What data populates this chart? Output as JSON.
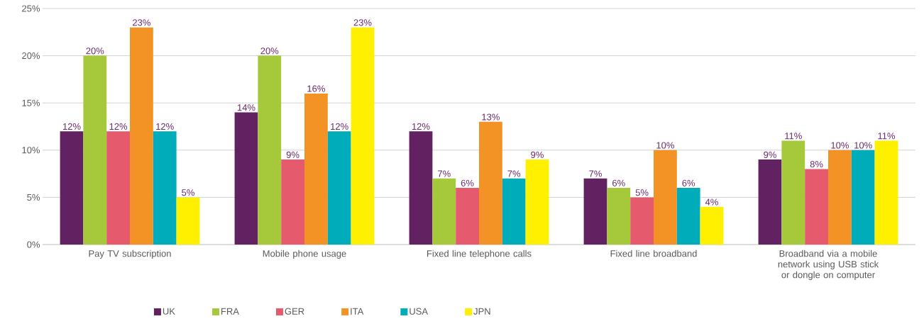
{
  "chart_data": {
    "type": "bar",
    "categories": [
      "Pay TV subscription",
      "Mobile phone usage",
      "Fixed line telephone calls",
      "Fixed line broadband",
      "Broadband via a mobile network using USB stick or dongle on computer"
    ],
    "series": [
      {
        "name": "UK",
        "color": "#622160",
        "values": [
          12,
          14,
          12,
          7,
          9
        ],
        "value_labels": [
          "12%",
          "14%",
          "12%",
          "7%",
          "9%"
        ]
      },
      {
        "name": "FRA",
        "color": "#a6c93b",
        "values": [
          20,
          20,
          7,
          6,
          11
        ],
        "value_labels": [
          "20%",
          "20%",
          "7%",
          "6%",
          "11%"
        ]
      },
      {
        "name": "GER",
        "color": "#e55a6c",
        "values": [
          12,
          9,
          6,
          5,
          8
        ],
        "value_labels": [
          "12%",
          "9%",
          "6%",
          "5%",
          "8%"
        ]
      },
      {
        "name": "ITA",
        "color": "#f39325",
        "values": [
          23,
          16,
          13,
          10,
          10
        ],
        "value_labels": [
          "23%",
          "16%",
          "13%",
          "10%",
          "10%"
        ]
      },
      {
        "name": "USA",
        "color": "#00acba",
        "values": [
          12,
          12,
          7,
          6,
          10
        ],
        "value_labels": [
          "12%",
          "12%",
          "7%",
          "6%",
          "10%"
        ]
      },
      {
        "name": "JPN",
        "color": "#fff000",
        "values": [
          5,
          23,
          9,
          4,
          11
        ],
        "value_labels": [
          "5%",
          "23%",
          "9%",
          "4%",
          "11%"
        ]
      }
    ],
    "ylim": [
      0,
      25
    ],
    "yticks": [
      {
        "value": 0,
        "label": "0%"
      },
      {
        "value": 5,
        "label": "5%"
      },
      {
        "value": 10,
        "label": "10%"
      },
      {
        "value": 15,
        "label": "15%"
      },
      {
        "value": 20,
        "label": "20%"
      },
      {
        "value": 25,
        "label": "25%"
      }
    ],
    "grid": "y",
    "legend": "bottom"
  }
}
